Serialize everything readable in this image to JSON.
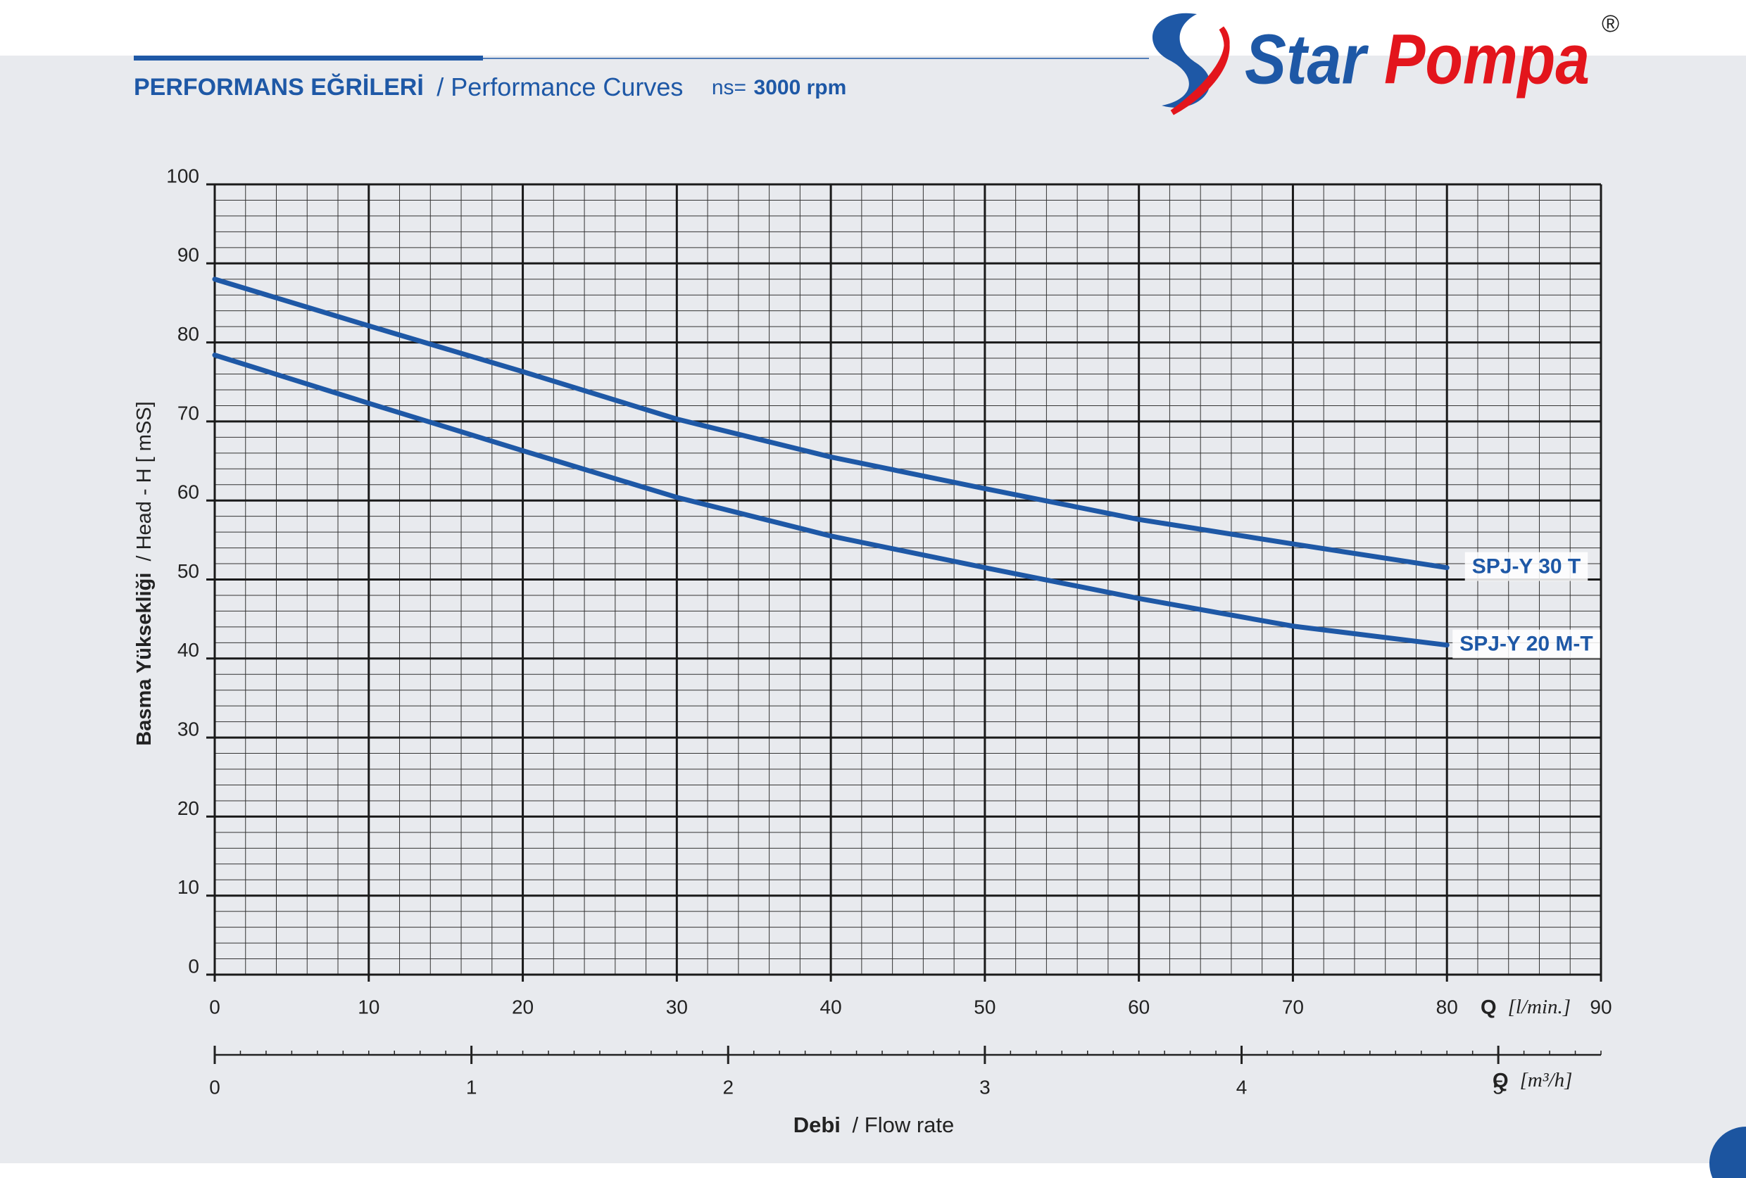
{
  "header": {
    "title_bold": "PERFORMANS EĞRİLERİ",
    "title": "/ Performance Curves",
    "speed_label": "ns=",
    "speed": "3000 rpm"
  },
  "logo": {
    "star": "Star",
    "pompa": "Pompa",
    "registered": "®"
  },
  "chart_data": {
    "type": "line",
    "ylabel_bold": "Basma Yüksekliği",
    "ylabel": "/ Head - H [ mSS]",
    "xlabel_q": "Q",
    "xlabel_unit": "[l/min.]",
    "x2label_q": "Q",
    "x2label_unit": "[m³/h]",
    "footer_bold": "Debi",
    "footer": "/ Flow rate",
    "x": [
      0,
      10,
      20,
      30,
      40,
      50,
      60,
      70,
      80
    ],
    "series": [
      {
        "name": "SPJ-Y 30 T",
        "color": "#1e58a6",
        "values": [
          88,
          82.1,
          76.3,
          70.3,
          65.5,
          61.5,
          57.6,
          54.5,
          51.5
        ]
      },
      {
        "name": "SPJ-Y 20 M-T",
        "color": "#1e58a6",
        "values": [
          78.4,
          72.3,
          66.3,
          60.4,
          55.5,
          51.5,
          47.6,
          44.1,
          41.7
        ]
      }
    ],
    "xlim": [
      0,
      90
    ],
    "xticks": [
      0,
      10,
      20,
      30,
      40,
      50,
      60,
      70,
      80,
      90
    ],
    "ylim": [
      0,
      100
    ],
    "yticks": [
      0,
      10,
      20,
      30,
      40,
      50,
      60,
      70,
      80,
      90,
      100
    ],
    "x2lim": [
      0,
      5.4
    ],
    "x2ticks": [
      0,
      1,
      2,
      3,
      4,
      5
    ],
    "xminor": 2,
    "yminor": 2,
    "x2minor": 0.1,
    "grid": true
  }
}
